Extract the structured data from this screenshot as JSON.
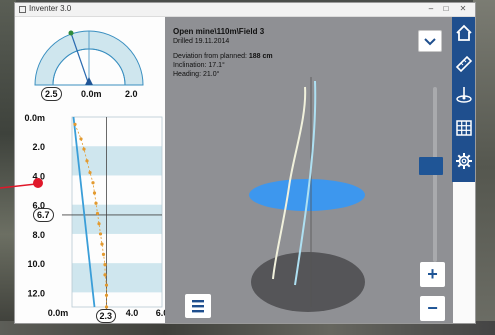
{
  "window": {
    "title": "Inventer 3.0"
  },
  "compass": {
    "value_pill": "2.5",
    "axis_center": "0.0m",
    "axis_right": "2.0"
  },
  "depth_chart": {
    "depth_ticks": [
      "0.0m",
      "2.0",
      "4.0",
      "6.0",
      "8.0",
      "10.0",
      "12.0"
    ],
    "x_ticks": [
      "0.0m",
      "2.3",
      "4.0",
      "6.0"
    ],
    "depth_marker_pill": "6.7",
    "x_marker_pill": "2.3",
    "colors": {
      "band": "#cfe6ee",
      "line": "#3a9ed8",
      "dots": "#e39a2f",
      "marker_dot": "#e0182a"
    }
  },
  "chart_data": {
    "type": "line",
    "xlabel": "",
    "ylabel": "",
    "ylim": [
      0,
      13
    ],
    "xlim": [
      0,
      6
    ],
    "series": [
      {
        "x": [
          0.1,
          1.5
        ],
        "y": [
          0.0,
          13.0
        ]
      },
      {
        "x": [
          0.2,
          0.6,
          0.8,
          1.0,
          1.2,
          1.4,
          1.5,
          1.6,
          1.7,
          1.8,
          1.9,
          2.0,
          2.1,
          2.2,
          2.2,
          2.3,
          2.3,
          2.3
        ],
        "y": [
          0.5,
          1.5,
          2.2,
          3.0,
          3.8,
          4.5,
          5.2,
          5.9,
          6.6,
          7.3,
          8.0,
          8.7,
          9.4,
          10.1,
          10.8,
          11.5,
          12.2,
          13.0
        ]
      }
    ]
  },
  "view3d": {
    "title": "Open mine\\110m\\Field 3",
    "drilled": "Drilled 19.11.2014",
    "deviation_label": "Deviation from planned: ",
    "deviation_value": "188 cm",
    "inclination": "Inclination: 17.1°",
    "heading": "Heading: 21.0°",
    "zoom_in_label": "+",
    "zoom_out_label": "−",
    "slider_level": 0.45,
    "colors": {
      "disc_blue": "#3d97ee",
      "ground": "#555558",
      "planned_line": "#aee0f2",
      "actual_line": "#f1f1dc"
    }
  },
  "toolbar": {
    "items": [
      "home-icon",
      "ruler-icon",
      "drill-icon",
      "grid-icon",
      "gear-icon"
    ],
    "color": "#1f4f8e"
  }
}
